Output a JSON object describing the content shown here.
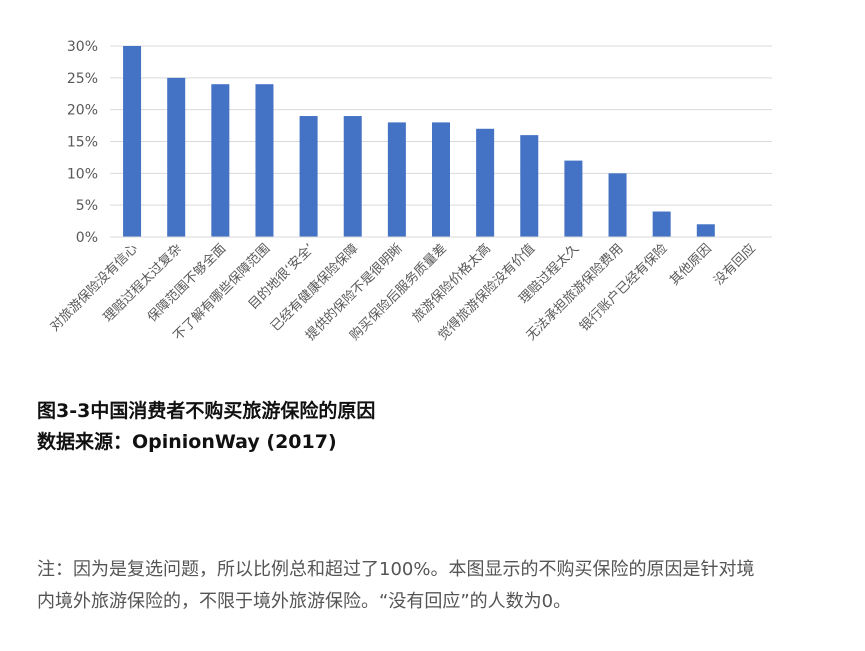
{
  "chart_data": {
    "type": "bar",
    "categories": [
      "对旅游保险没有信心",
      "理赔过程太过复杂",
      "保障范围不够全面",
      "不了解有哪些保障范围",
      "目的地很‘安全’",
      "已经有健康保险保障",
      "提供的保险不是很明晰",
      "购买保险后服务质量差",
      "旅游保险价格太高",
      "觉得旅游保险没有价值",
      "理赔过程太久",
      "无法承担旅游保险费用",
      "银行账户已经有保险",
      "其他原因",
      "没有回应"
    ],
    "values": [
      30,
      25,
      24,
      24,
      19,
      19,
      18,
      18,
      17,
      16,
      12,
      10,
      4,
      2,
      0
    ],
    "unit": "%",
    "ylim": [
      0,
      30
    ],
    "yticks": [
      "0%",
      "5%",
      "10%",
      "15%",
      "20%",
      "25%",
      "30%"
    ],
    "grid": true,
    "bar_color": "#4472C4"
  },
  "caption": {
    "title": "图3-3中国消费者不购买旅游保险的原因",
    "source": "数据来源：OpinionWay (2017)"
  },
  "note": "注：因为是复选问题，所以比例总和超过了100%。本图显示的不购买保险的原因是针对境内境外旅游保险的，不限于境外旅游保险。“没有回应”的人数为0。"
}
